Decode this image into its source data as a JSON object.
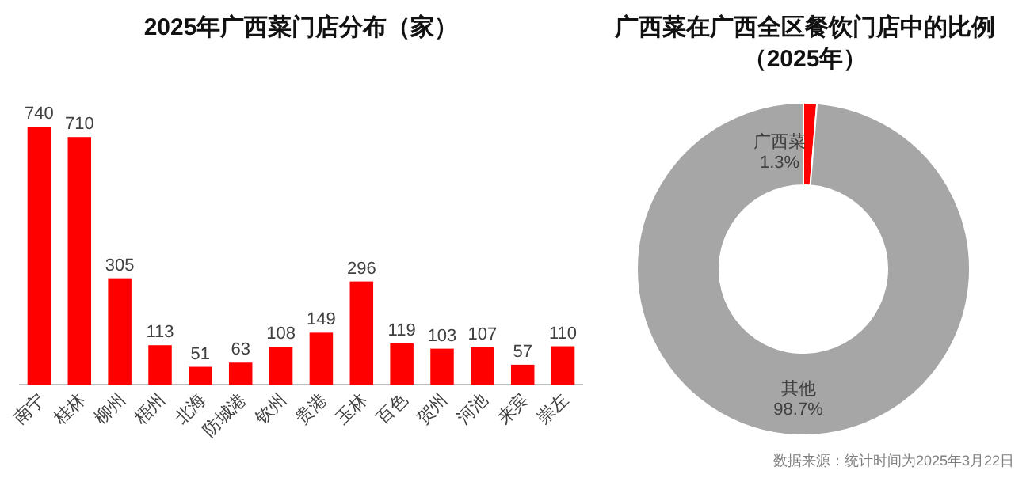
{
  "chart_data": [
    {
      "type": "bar",
      "title": "2025年广西菜门店分布（家）",
      "categories": [
        "南宁",
        "桂林",
        "柳州",
        "梧州",
        "北海",
        "防城港",
        "钦州",
        "贵港",
        "玉林",
        "百色",
        "贺州",
        "河池",
        "来宾",
        "崇左"
      ],
      "values": [
        740,
        710,
        305,
        113,
        51,
        63,
        108,
        149,
        296,
        119,
        103,
        107,
        57,
        110
      ],
      "color": "#ff0000",
      "data_labels": true,
      "legend": false
    },
    {
      "type": "donut",
      "title": "广西菜在广西全区餐饮门店中的比例（2025年）",
      "categories": [
        "广西菜",
        "其他"
      ],
      "values": [
        1.3,
        98.7
      ],
      "colors": [
        "#ff0000",
        "#a6a6a6"
      ],
      "value_labels": [
        "1.3%",
        "98.7%"
      ],
      "annotations": [
        "数据来源：统计时间为2025年3月22日"
      ]
    }
  ]
}
